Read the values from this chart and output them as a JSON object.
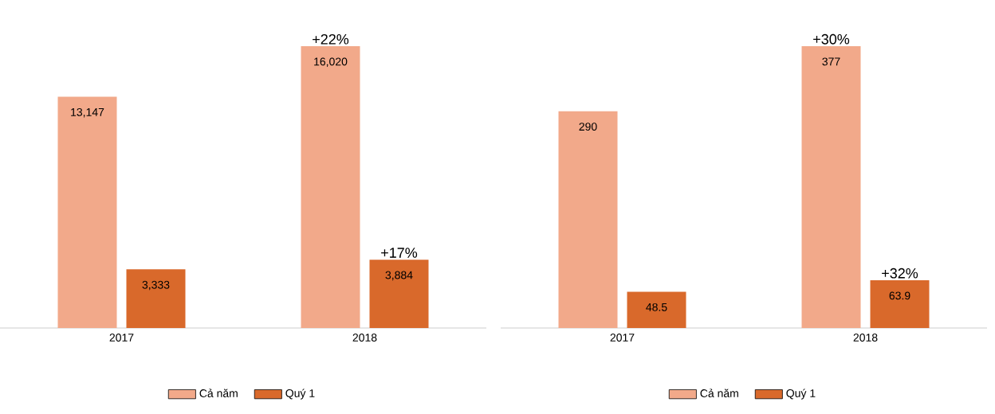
{
  "chart_data": [
    {
      "type": "bar",
      "categories": [
        "2017",
        "2018"
      ],
      "series": [
        {
          "name": "Cả năm",
          "color": "#f2a98a",
          "values": [
            13147,
            16020
          ],
          "value_labels": [
            "13,147",
            "16,020"
          ]
        },
        {
          "name": "Quý 1",
          "color": "#d9692b",
          "values": [
            3333,
            3884
          ],
          "value_labels": [
            "3,333",
            "3,884"
          ]
        }
      ],
      "annotations": [
        {
          "text": "+22%",
          "x": "2018",
          "y": 16020
        },
        {
          "text": "+17%",
          "x": "2018",
          "y": 3884
        }
      ],
      "legend": "bottom",
      "tick_labels": "x"
    },
    {
      "type": "bar",
      "categories": [
        "2017",
        "2018"
      ],
      "series": [
        {
          "name": "Cả năm",
          "color": "#f2a98a",
          "values": [
            290,
            377
          ],
          "value_labels": [
            "290",
            "377"
          ]
        },
        {
          "name": "Quý 1",
          "color": "#d9692b",
          "values": [
            48.5,
            63.9
          ],
          "value_labels": [
            "48.5",
            "63.9"
          ]
        }
      ],
      "annotations": [
        {
          "text": "+30%",
          "x": "2018",
          "y": 377
        },
        {
          "text": "+32%",
          "x": "2018",
          "y": 63.9
        }
      ],
      "legend": "bottom",
      "tick_labels": "x"
    }
  ]
}
